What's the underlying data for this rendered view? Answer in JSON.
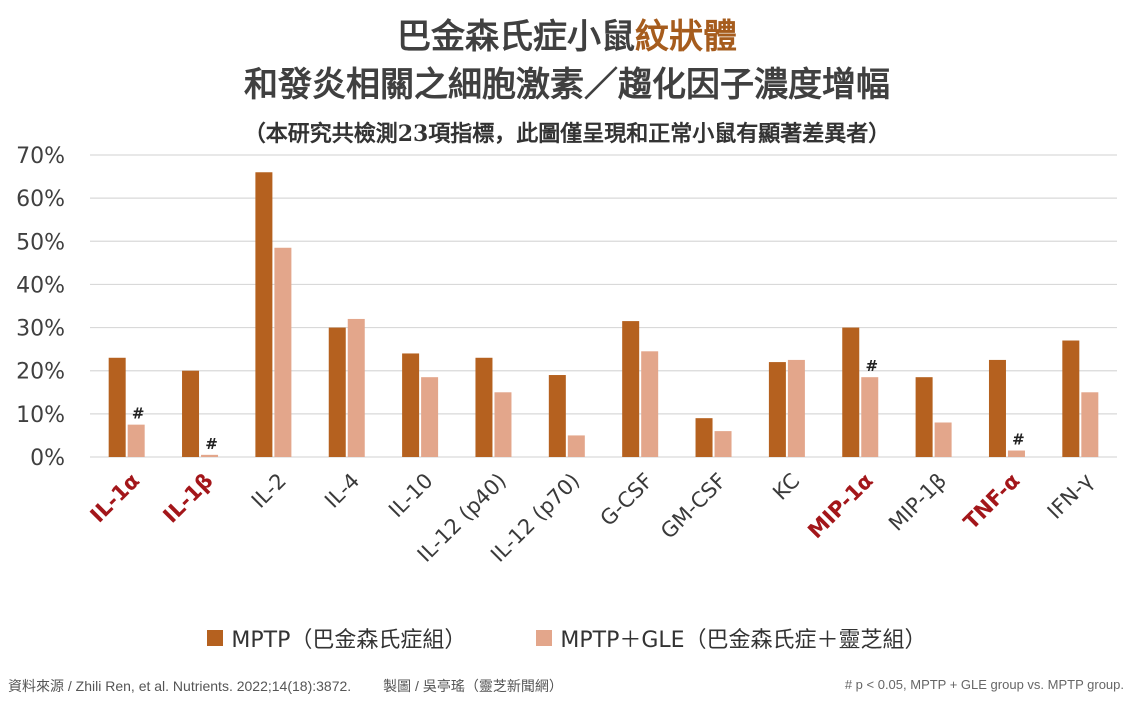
{
  "header": {
    "title_line1_prefix": "巴金森氏症小鼠",
    "title_line1_highlight": "紋狀體",
    "title_line2": "和發炎相關之細胞激素／趨化因子濃度增幅",
    "subtitle": "（本研究共檢測23項指標，此圖僅呈現和正常小鼠有顯著差異者）"
  },
  "colors": {
    "series1": "#b5611f",
    "series2": "#e3a68b",
    "accent_title": "#a65c1d",
    "highlight_label": "#a3161a",
    "axis_text": "#404040",
    "grid": "#d9d9d9"
  },
  "legend": {
    "series1": "MPTP（巴金森氏症組）",
    "series2": "MPTP＋GLE（巴金森氏症＋靈芝組）"
  },
  "footer": {
    "source": "資料來源 / Zhili Ren, et al. Nutrients. 2022;14(18):3872.",
    "credit": "製圖 / 吳亭瑤（靈芝新聞網）",
    "note": "# p < 0.05, MPTP + GLE group vs. MPTP group."
  },
  "chart_data": {
    "type": "bar",
    "title": "巴金森氏症小鼠紋狀體和發炎相關之細胞激素／趨化因子濃度增幅",
    "categories": [
      "IL-1α",
      "IL-1β",
      "IL-2",
      "IL-4",
      "IL-10",
      "IL-12 (p40)",
      "IL-12 (p70)",
      "G-CSF",
      "GM-CSF",
      "KC",
      "MIP-1α",
      "MIP-1β",
      "TNF-α",
      "IFN-γ"
    ],
    "highlighted_categories": [
      "IL-1α",
      "IL-1β",
      "MIP-1α",
      "TNF-α"
    ],
    "series": [
      {
        "name": "MPTP（巴金森氏症組）",
        "values": [
          23,
          20,
          66,
          30,
          24,
          23,
          19,
          31.5,
          9,
          22,
          30,
          18.5,
          22.5,
          27
        ]
      },
      {
        "name": "MPTP＋GLE（巴金森氏症＋靈芝組）",
        "values": [
          7.5,
          0.5,
          48.5,
          32,
          18.5,
          15,
          5,
          24.5,
          6,
          22.5,
          18.5,
          8,
          1.5,
          15
        ]
      }
    ],
    "significance_marks": [
      {
        "category": "IL-1α",
        "series": 1,
        "text": "#"
      },
      {
        "category": "IL-1β",
        "series": 1,
        "text": "#"
      },
      {
        "category": "MIP-1α",
        "series": 1,
        "text": "#"
      },
      {
        "category": "TNF-α",
        "series": 1,
        "text": "#"
      }
    ],
    "yticks": [
      "0%",
      "10%",
      "20%",
      "30%",
      "40%",
      "50%",
      "60%",
      "70%"
    ],
    "ylim": [
      0,
      70
    ],
    "xlabel": "",
    "ylabel": "",
    "grid": true
  }
}
